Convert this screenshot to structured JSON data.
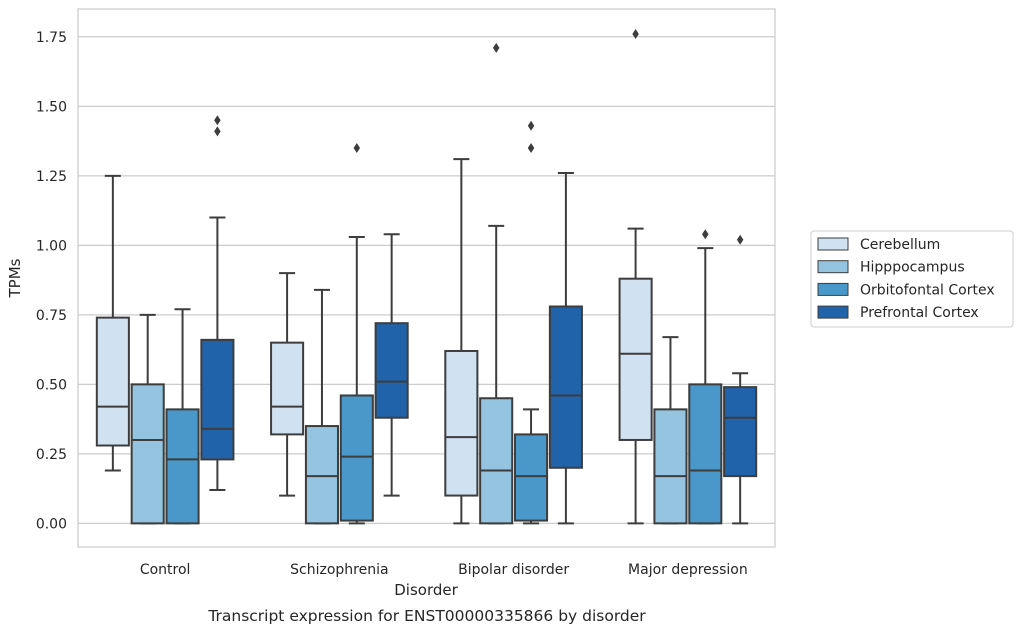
{
  "chart_data": {
    "type": "box",
    "caption": "Transcript expression for ENST00000335866 by disorder",
    "xlabel": "Disorder",
    "ylabel": "TPMs",
    "ylim": [
      -0.085,
      1.85
    ],
    "yticks": [
      0.0,
      0.25,
      0.5,
      0.75,
      1.0,
      1.25,
      1.5,
      1.75
    ],
    "ytick_labels": [
      "0.00",
      "0.25",
      "0.50",
      "0.75",
      "1.00",
      "1.25",
      "1.50",
      "1.75"
    ],
    "grid": true,
    "legend_position": "right",
    "categories": [
      "Control",
      "Schizophrenia",
      "Bipolar disorder",
      "Major depression"
    ],
    "series": [
      {
        "name": "Cerebellum",
        "color": "#d0e1f2",
        "boxes": [
          {
            "whislo": 0.19,
            "q1": 0.28,
            "med": 0.42,
            "q3": 0.74,
            "whishi": 1.25,
            "fliers": []
          },
          {
            "whislo": 0.1,
            "q1": 0.32,
            "med": 0.42,
            "q3": 0.65,
            "whishi": 0.9,
            "fliers": []
          },
          {
            "whislo": 0.0,
            "q1": 0.1,
            "med": 0.31,
            "q3": 0.62,
            "whishi": 1.31,
            "fliers": []
          },
          {
            "whislo": 0.0,
            "q1": 0.3,
            "med": 0.61,
            "q3": 0.88,
            "whishi": 1.06,
            "fliers": [
              1.76
            ]
          }
        ]
      },
      {
        "name": "Hipppocampus",
        "color": "#94c4df",
        "boxes": [
          {
            "whislo": 0.0,
            "q1": 0.0,
            "med": 0.3,
            "q3": 0.5,
            "whishi": 0.75,
            "fliers": []
          },
          {
            "whislo": 0.0,
            "q1": 0.0,
            "med": 0.17,
            "q3": 0.35,
            "whishi": 0.84,
            "fliers": []
          },
          {
            "whislo": 0.0,
            "q1": 0.0,
            "med": 0.19,
            "q3": 0.45,
            "whishi": 1.07,
            "fliers": [
              1.71
            ]
          },
          {
            "whislo": 0.0,
            "q1": 0.0,
            "med": 0.17,
            "q3": 0.41,
            "whishi": 0.67,
            "fliers": []
          }
        ]
      },
      {
        "name": "Orbitofontal Cortex",
        "color": "#4a98c9",
        "boxes": [
          {
            "whislo": 0.0,
            "q1": 0.0,
            "med": 0.23,
            "q3": 0.41,
            "whishi": 0.77,
            "fliers": []
          },
          {
            "whislo": 0.0,
            "q1": 0.01,
            "med": 0.24,
            "q3": 0.46,
            "whishi": 1.03,
            "fliers": [
              1.35
            ]
          },
          {
            "whislo": 0.0,
            "q1": 0.01,
            "med": 0.17,
            "q3": 0.32,
            "whishi": 0.41,
            "fliers": [
              1.35,
              1.43
            ]
          },
          {
            "whislo": 0.0,
            "q1": 0.0,
            "med": 0.19,
            "q3": 0.5,
            "whishi": 0.99,
            "fliers": [
              1.04
            ]
          }
        ]
      },
      {
        "name": "Prefrontal Cortex",
        "color": "#2163aa",
        "boxes": [
          {
            "whislo": 0.12,
            "q1": 0.23,
            "med": 0.34,
            "q3": 0.66,
            "whishi": 1.1,
            "fliers": [
              1.41,
              1.45
            ]
          },
          {
            "whislo": 0.1,
            "q1": 0.38,
            "med": 0.51,
            "q3": 0.72,
            "whishi": 1.04,
            "fliers": []
          },
          {
            "whislo": 0.0,
            "q1": 0.2,
            "med": 0.46,
            "q3": 0.78,
            "whishi": 1.26,
            "fliers": []
          },
          {
            "whislo": 0.0,
            "q1": 0.17,
            "med": 0.38,
            "q3": 0.49,
            "whishi": 0.54,
            "fliers": [
              1.02
            ]
          }
        ]
      }
    ]
  }
}
